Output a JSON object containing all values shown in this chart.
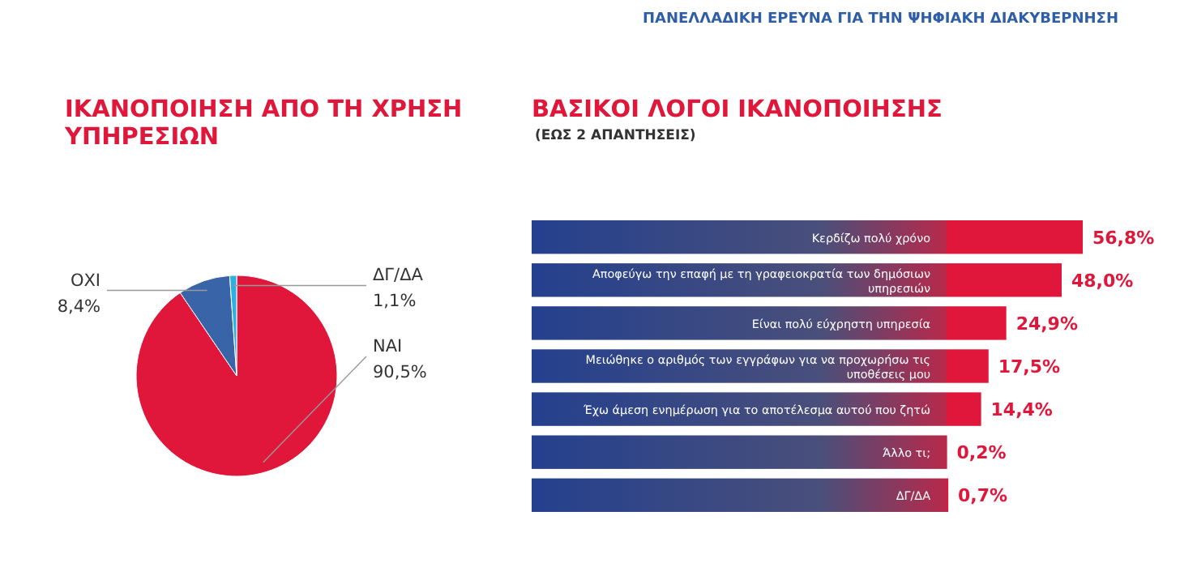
{
  "chart_data": [
    {
      "type": "pie",
      "title": "ΙΚΑΝΟΠΟΙΗΣΗ ΑΠΟ ΤΗ ΧΡΗΣΗ ΥΠΗΡΕΣΙΩΝ",
      "categories": [
        "ΝΑΙ",
        "ΟΧΙ",
        "ΔΓ/ΔΑ"
      ],
      "values": [
        90.5,
        8.4,
        1.1
      ],
      "colors": [
        "#e0173a",
        "#3a64a8",
        "#2bb0e0"
      ],
      "value_labels": [
        "90,5%",
        "8,4%",
        "1,1%"
      ]
    },
    {
      "type": "bar",
      "orientation": "horizontal",
      "title": "ΒΑΣΙΚΟΙ ΛΟΓΟΙ ΙΚΑΝΟΠΟΙΗΣΗΣ",
      "subtitle": "(ΕΩΣ 2 ΑΠΑΝΤΗΣΕΙΣ)",
      "annotations": [
        "ΠΑΝΕΛΛΑΔΙΚΗ ΕΡΕΥΝΑ ΓΙΑ ΤΗΝ ΨΗΦΙΑΚΗ ΔΙΑΚΥΒΕΡΝΗΣΗ"
      ],
      "categories": [
        "Κερδίζω πολύ χρόνο",
        "Αποφεύγω την επαφή με τη γραφειοκρατία των δημόσιων υπηρεσιών",
        "Είναι πολύ εύχρηστη υπηρεσία",
        "Μειώθηκε ο αριθμός των εγγράφων για να προχωρήσω τις υποθέσεις μου",
        "Έχω άμεση ενημέρωση για το αποτέλεσμα αυτού που ζητώ",
        "Άλλο τι;",
        "ΔΓ/ΔΑ"
      ],
      "values": [
        56.8,
        48.0,
        24.9,
        17.5,
        14.4,
        0.2,
        0.7
      ],
      "color": "#e0173a",
      "value_labels": [
        "56,8%",
        "48,0%",
        "24,9%",
        "17,5%",
        "14,4%",
        "0,2%",
        "0,7%"
      ]
    }
  ]
}
